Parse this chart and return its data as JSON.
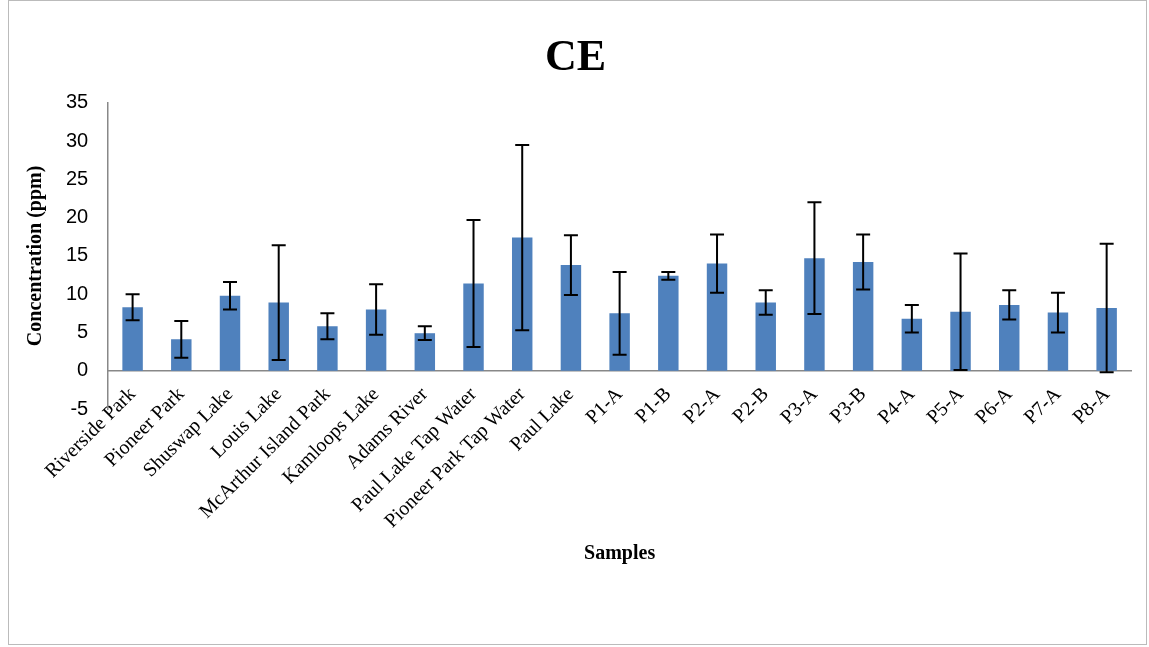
{
  "chart_data": {
    "type": "bar",
    "title": "CE",
    "xlabel": "Samples",
    "ylabel": "Concentration (ppm)",
    "categories": [
      "Riverside Park",
      "Pioneer Park",
      "Shuswap Lake",
      "Louis Lake",
      "McArthur Island Park",
      "Kamloops Lake",
      "Adams River",
      "Paul Lake Tap Water",
      "Pioneer Park Tap Water",
      "Paul Lake",
      "P1-A",
      "P1-B",
      "P2-A",
      "P2-B",
      "P3-A",
      "P3-B",
      "P4-A",
      "P5-A",
      "P6-A",
      "P7-A",
      "P8-A"
    ],
    "values": [
      8.3,
      4.1,
      9.8,
      8.9,
      5.8,
      8.0,
      4.9,
      11.4,
      17.4,
      13.8,
      7.5,
      12.4,
      14.0,
      8.9,
      14.7,
      14.2,
      6.8,
      7.7,
      8.6,
      7.6,
      8.2
    ],
    "errors": [
      1.7,
      2.4,
      1.8,
      7.5,
      1.7,
      3.3,
      0.9,
      8.3,
      12.1,
      3.9,
      5.4,
      0.5,
      3.8,
      1.6,
      7.3,
      3.6,
      1.8,
      7.6,
      1.9,
      2.6,
      8.4
    ],
    "color": "#4f81bd",
    "ylim": [
      -5,
      35
    ],
    "yticks": [
      -5,
      0,
      5,
      10,
      15,
      20,
      25,
      30,
      35
    ],
    "grid": false,
    "legend": false
  }
}
